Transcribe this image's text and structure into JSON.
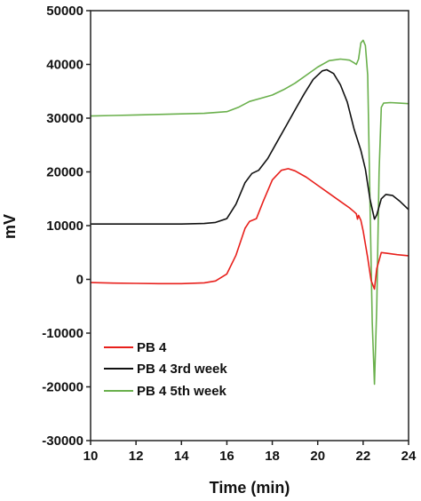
{
  "chart_data": {
    "type": "line",
    "xlabel": "Time (min)",
    "ylabel": "mV",
    "xlim": [
      10,
      24
    ],
    "ylim": [
      -30000,
      50000
    ],
    "x_ticks": [
      "10",
      "12",
      "14",
      "16",
      "18",
      "20",
      "22",
      "24"
    ],
    "y_ticks": [
      "-30000",
      "-20000",
      "-10000",
      "0",
      "10000",
      "20000",
      "30000",
      "40000",
      "50000"
    ],
    "grid": false,
    "legend_position": "bottom-left",
    "series": [
      {
        "name": "PB 4",
        "color": "#e8201c",
        "points": [
          [
            10,
            -600
          ],
          [
            11,
            -700
          ],
          [
            12,
            -750
          ],
          [
            13,
            -800
          ],
          [
            14,
            -800
          ],
          [
            15,
            -650
          ],
          [
            15.5,
            -300
          ],
          [
            16,
            1000
          ],
          [
            16.4,
            4500
          ],
          [
            16.8,
            9500
          ],
          [
            17.0,
            10800
          ],
          [
            17.3,
            11300
          ],
          [
            17.6,
            14500
          ],
          [
            18.0,
            18500
          ],
          [
            18.4,
            20300
          ],
          [
            18.7,
            20600
          ],
          [
            19.0,
            20200
          ],
          [
            19.5,
            19000
          ],
          [
            20.0,
            17500
          ],
          [
            20.5,
            16000
          ],
          [
            21.0,
            14500
          ],
          [
            21.4,
            13300
          ],
          [
            21.6,
            12600
          ],
          [
            21.7,
            12200
          ],
          [
            21.75,
            11200
          ],
          [
            21.8,
            11900
          ],
          [
            21.9,
            11000
          ],
          [
            22.0,
            9000
          ],
          [
            22.2,
            4000
          ],
          [
            22.35,
            -200
          ],
          [
            22.5,
            -1800
          ],
          [
            22.6,
            2000
          ],
          [
            22.8,
            5000
          ],
          [
            23.0,
            4900
          ],
          [
            23.5,
            4600
          ],
          [
            24,
            4400
          ]
        ]
      },
      {
        "name": "PB 4 3rd week",
        "color": "#111111",
        "points": [
          [
            10,
            10300
          ],
          [
            11,
            10300
          ],
          [
            12,
            10300
          ],
          [
            13,
            10300
          ],
          [
            14,
            10300
          ],
          [
            15,
            10400
          ],
          [
            15.5,
            10600
          ],
          [
            16,
            11300
          ],
          [
            16.4,
            14000
          ],
          [
            16.8,
            18000
          ],
          [
            17.1,
            19700
          ],
          [
            17.4,
            20300
          ],
          [
            17.8,
            22500
          ],
          [
            18.2,
            25500
          ],
          [
            18.6,
            28500
          ],
          [
            19.0,
            31500
          ],
          [
            19.4,
            34500
          ],
          [
            19.8,
            37200
          ],
          [
            20.2,
            38800
          ],
          [
            20.4,
            39000
          ],
          [
            20.7,
            38300
          ],
          [
            21.0,
            36200
          ],
          [
            21.3,
            33000
          ],
          [
            21.6,
            28000
          ],
          [
            21.9,
            24000
          ],
          [
            22.1,
            20500
          ],
          [
            22.3,
            15000
          ],
          [
            22.5,
            11200
          ],
          [
            22.6,
            12000
          ],
          [
            22.8,
            15000
          ],
          [
            23.0,
            15800
          ],
          [
            23.3,
            15600
          ],
          [
            23.6,
            14600
          ],
          [
            24,
            13000
          ]
        ]
      },
      {
        "name": "PB 4 5th week",
        "color": "#6ab04c",
        "points": [
          [
            10,
            30400
          ],
          [
            11,
            30500
          ],
          [
            12,
            30600
          ],
          [
            13,
            30700
          ],
          [
            14,
            30800
          ],
          [
            15,
            30900
          ],
          [
            16,
            31200
          ],
          [
            16.5,
            32000
          ],
          [
            17.0,
            33100
          ],
          [
            17.5,
            33700
          ],
          [
            18.0,
            34300
          ],
          [
            18.5,
            35300
          ],
          [
            19.0,
            36500
          ],
          [
            19.5,
            38000
          ],
          [
            20.0,
            39500
          ],
          [
            20.5,
            40700
          ],
          [
            21.0,
            41000
          ],
          [
            21.4,
            40800
          ],
          [
            21.6,
            40300
          ],
          [
            21.7,
            40000
          ],
          [
            21.8,
            41000
          ],
          [
            21.9,
            44000
          ],
          [
            22.0,
            44500
          ],
          [
            22.1,
            43500
          ],
          [
            22.2,
            38000
          ],
          [
            22.3,
            15000
          ],
          [
            22.4,
            -8000
          ],
          [
            22.5,
            -19500
          ],
          [
            22.6,
            -5000
          ],
          [
            22.7,
            20000
          ],
          [
            22.8,
            32000
          ],
          [
            22.9,
            32800
          ],
          [
            23.2,
            32900
          ],
          [
            23.6,
            32800
          ],
          [
            24,
            32700
          ]
        ]
      }
    ]
  }
}
